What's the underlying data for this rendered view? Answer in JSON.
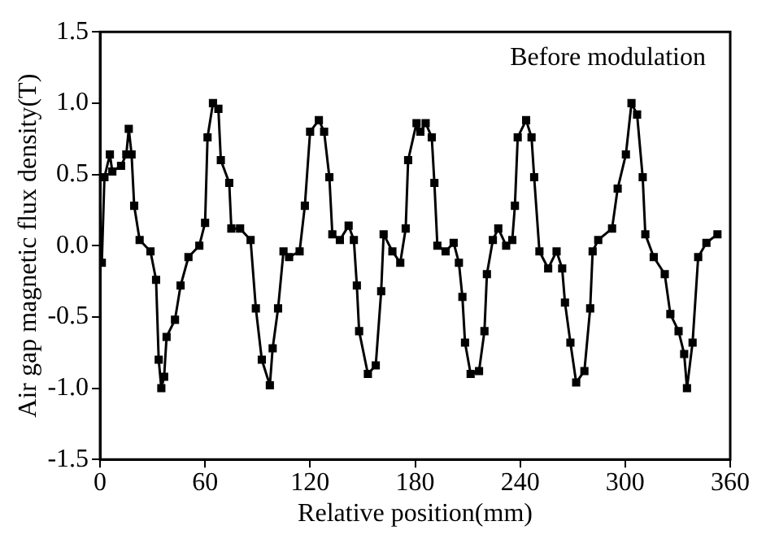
{
  "chart_data": {
    "type": "line",
    "xlabel": "Relative position(mm)",
    "ylabel": "Air gap magnetic flux density(T)",
    "annotations": [
      "Before modulation"
    ],
    "xlim": [
      0,
      360
    ],
    "xticks": [
      0,
      60,
      120,
      180,
      240,
      300,
      360
    ],
    "ylim": [
      -1.5,
      1.5
    ],
    "yticks": [
      -1.5,
      {
        "value": -1,
        "label": "-1.0"
      },
      -0.5,
      {
        "value": 0,
        "label": "0.0"
      },
      0.5,
      {
        "value": 1,
        "label": "1.0"
      },
      1.5
    ],
    "grid": false,
    "legend": false,
    "marker": "square",
    "line_style": "solid",
    "series": [
      {
        "color": "#000000",
        "x": [
          1,
          2.5,
          5.6,
          7,
          12,
          15,
          16.4,
          18,
          19.5,
          22.6,
          28.8,
          32,
          33.5,
          35,
          36.6,
          38,
          42.8,
          46,
          50.5,
          56.7,
          60,
          61.4,
          64.5,
          67.6,
          69,
          73.8,
          75,
          80,
          86,
          89,
          92.4,
          97,
          98.6,
          101.7,
          104.8,
          108,
          114,
          117,
          120,
          125,
          128,
          131,
          132.7,
          137,
          142,
          145,
          146.7,
          148,
          153,
          157.5,
          160.6,
          162,
          167,
          171.5,
          174.6,
          176,
          180.8,
          183,
          186,
          189.5,
          191,
          192.7,
          197.4,
          202,
          205,
          207,
          208.5,
          211.7,
          216.5,
          219.6,
          221,
          224.4,
          227.5,
          232,
          235.5,
          237,
          238.6,
          243.4,
          246.5,
          248,
          251,
          256,
          260.8,
          264,
          265.6,
          268.7,
          272,
          276.7,
          280,
          281.4,
          284.6,
          292.5,
          295.7,
          300.4,
          303.6,
          306.8,
          310,
          311.5,
          316.3,
          322.6,
          325.8,
          330.5,
          333.7,
          335.3,
          338.5,
          341.7,
          346.4,
          352.7
        ],
        "values": [
          -0.12,
          0.48,
          0.64,
          0.52,
          0.56,
          0.64,
          0.82,
          0.64,
          0.28,
          0.04,
          -0.04,
          -0.24,
          -0.8,
          -1.0,
          -0.92,
          -0.64,
          -0.52,
          -0.28,
          -0.08,
          0,
          0.16,
          0.76,
          1.0,
          0.96,
          0.6,
          0.44,
          0.12,
          0.12,
          0.04,
          -0.44,
          -0.8,
          -0.98,
          -0.72,
          -0.44,
          -0.04,
          -0.08,
          -0.04,
          0.28,
          0.8,
          0.88,
          0.8,
          0.48,
          0.08,
          0.04,
          0.14,
          0.04,
          -0.28,
          -0.6,
          -0.9,
          -0.84,
          -0.32,
          0.08,
          -0.04,
          -0.12,
          0.12,
          0.6,
          0.86,
          0.8,
          0.86,
          0.76,
          0.44,
          0,
          -0.04,
          0.02,
          -0.12,
          -0.36,
          -0.68,
          -0.9,
          -0.88,
          -0.6,
          -0.2,
          0.04,
          0.12,
          0,
          0.04,
          0.28,
          0.76,
          0.88,
          0.76,
          0.48,
          -0.04,
          -0.16,
          -0.04,
          -0.16,
          -0.4,
          -0.68,
          -0.96,
          -0.88,
          -0.44,
          -0.04,
          0.04,
          0.12,
          0.4,
          0.64,
          1.0,
          0.92,
          0.48,
          0.08,
          -0.08,
          -0.2,
          -0.48,
          -0.6,
          -0.76,
          -1.0,
          -0.68,
          -0.08,
          0.02,
          0.08
        ]
      }
    ]
  }
}
